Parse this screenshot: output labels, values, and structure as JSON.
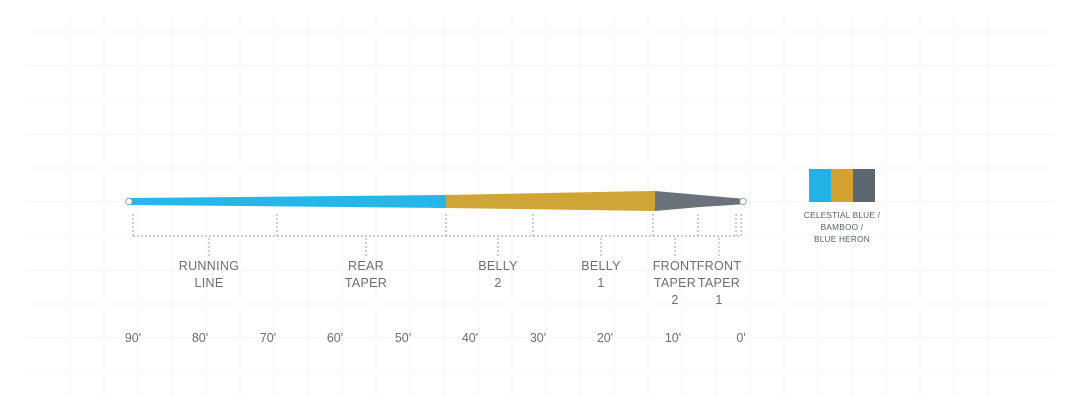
{
  "diagram": {
    "type": "fly-line-taper-profile",
    "colors": {
      "running_line": "#26b6e8",
      "belly": "#cfa535",
      "front_taper": "#6b737a",
      "dimension": "#9aa0a6"
    },
    "sections": [
      {
        "id": "running-line",
        "label": "RUNNING\nLINE"
      },
      {
        "id": "rear-taper",
        "label": "REAR\nTAPER"
      },
      {
        "id": "belly-2",
        "label": "BELLY\n2"
      },
      {
        "id": "belly-1",
        "label": "BELLY\n1"
      },
      {
        "id": "front-taper-2",
        "label": "FRONT\nTAPER\n2"
      },
      {
        "id": "front-taper-1",
        "label": "FRONT\nTAPER\n1"
      }
    ],
    "distance_axis": [
      "90'",
      "80'",
      "70'",
      "60'",
      "50'",
      "40'",
      "30'",
      "20'",
      "10'",
      "0'"
    ]
  },
  "color_legend": {
    "name": "CELESTIAL BLUE /\nBAMBOO /\nBLUE HERON",
    "swatches": [
      "#1fb3e8",
      "#d3a233",
      "#5d6770"
    ]
  }
}
